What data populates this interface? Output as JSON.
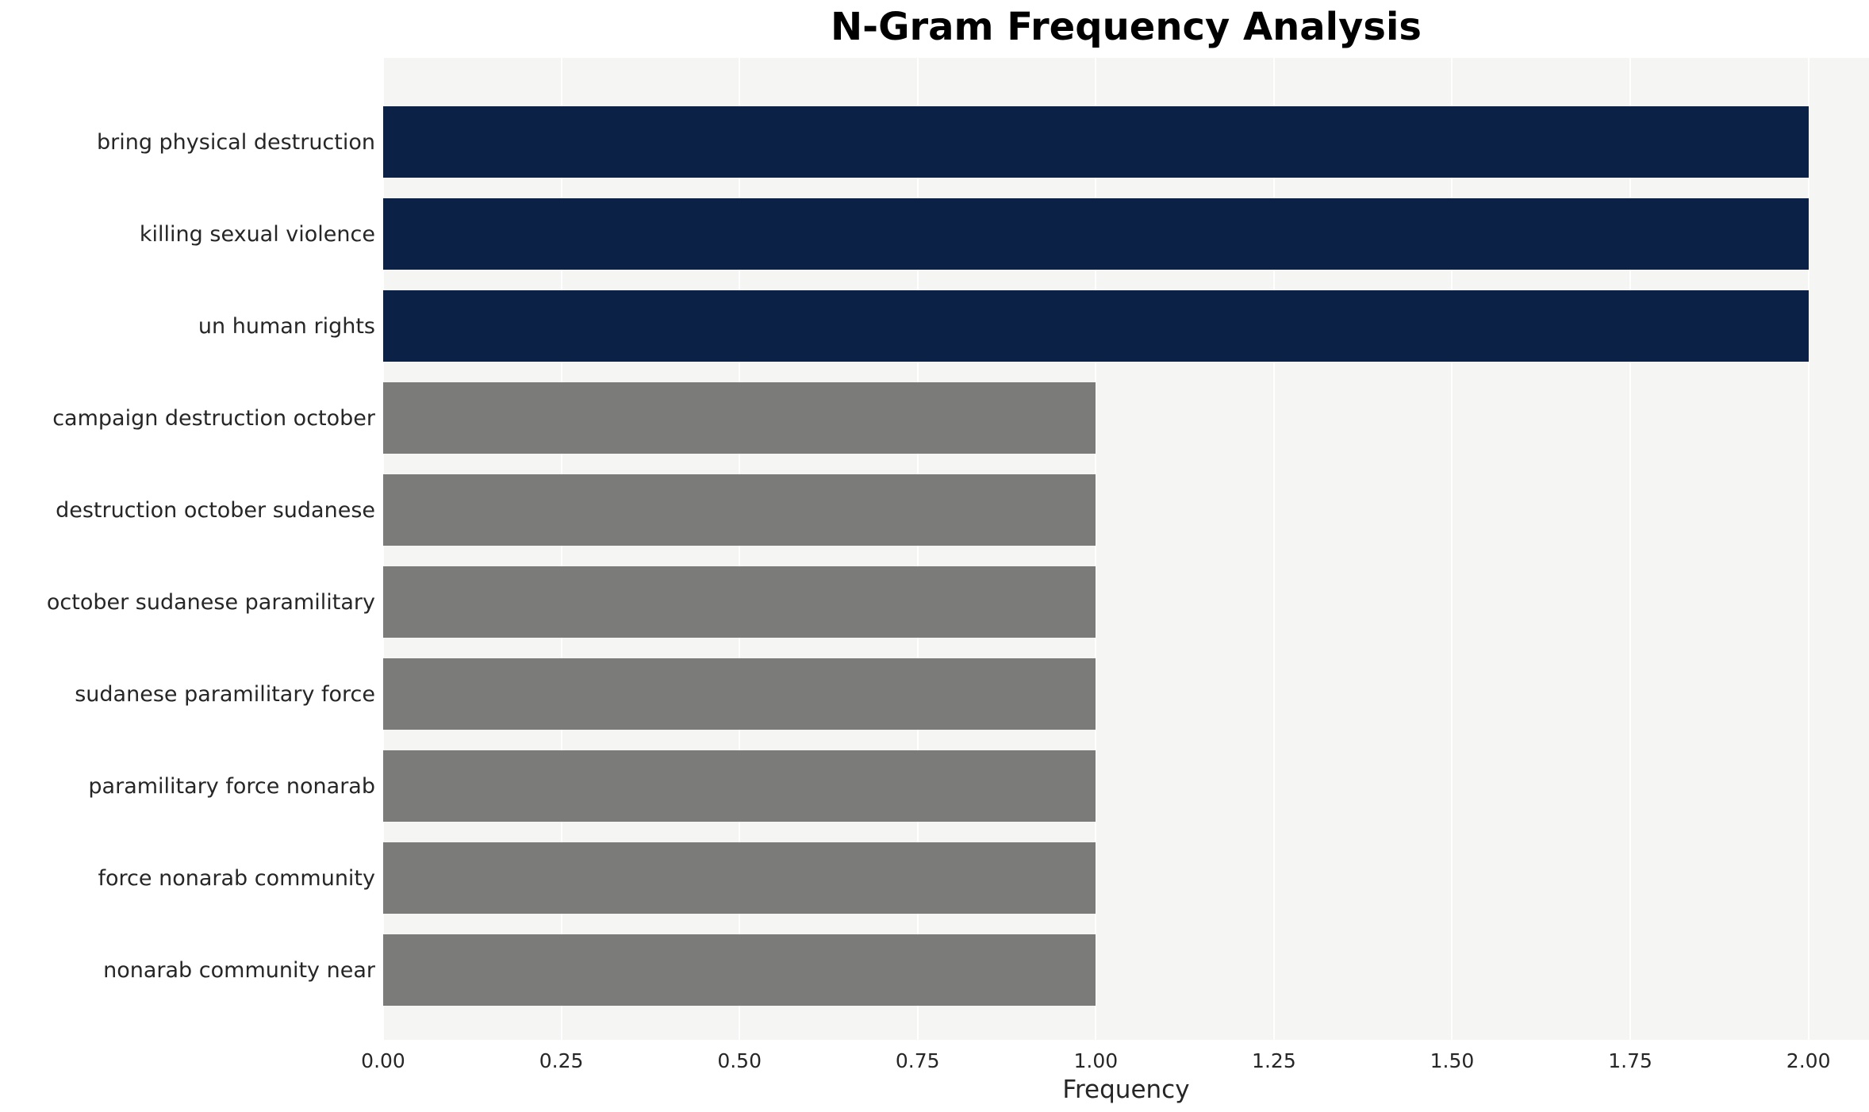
{
  "title": "N-Gram Frequency Analysis",
  "chart_data": {
    "type": "bar",
    "orientation": "horizontal",
    "title": "N-Gram Frequency Analysis",
    "xlabel": "Frequency",
    "ylabel": "",
    "categories": [
      "bring physical destruction",
      "killing sexual violence",
      "un human rights",
      "campaign destruction october",
      "destruction october sudanese",
      "october sudanese paramilitary",
      "sudanese paramilitary force",
      "paramilitary force nonarab",
      "force nonarab community",
      "nonarab community near"
    ],
    "values": [
      2,
      2,
      2,
      1,
      1,
      1,
      1,
      1,
      1,
      1
    ],
    "bar_colors": [
      "#0c2146",
      "#0c2146",
      "#0c2146",
      "#7b7b79",
      "#7b7b79",
      "#7b7b79",
      "#7b7b79",
      "#7b7b79",
      "#7b7b79",
      "#7b7b79"
    ],
    "xlim": [
      0,
      2.085
    ],
    "xticks": [
      0,
      0.25,
      0.5,
      0.75,
      1.0,
      1.25,
      1.5,
      1.75,
      2.0
    ],
    "xtick_labels": [
      "0.00",
      "0.25",
      "0.50",
      "0.75",
      "1.00",
      "1.25",
      "1.50",
      "1.75",
      "2.00"
    ],
    "grid": true,
    "legend": false,
    "colors": {
      "bar_high": "#0c2146",
      "bar_low": "#7b7b79",
      "plot_background": "#f5f5f4",
      "grid_line": "#ffffff",
      "text": "#262626",
      "title_text": "#000000"
    }
  }
}
